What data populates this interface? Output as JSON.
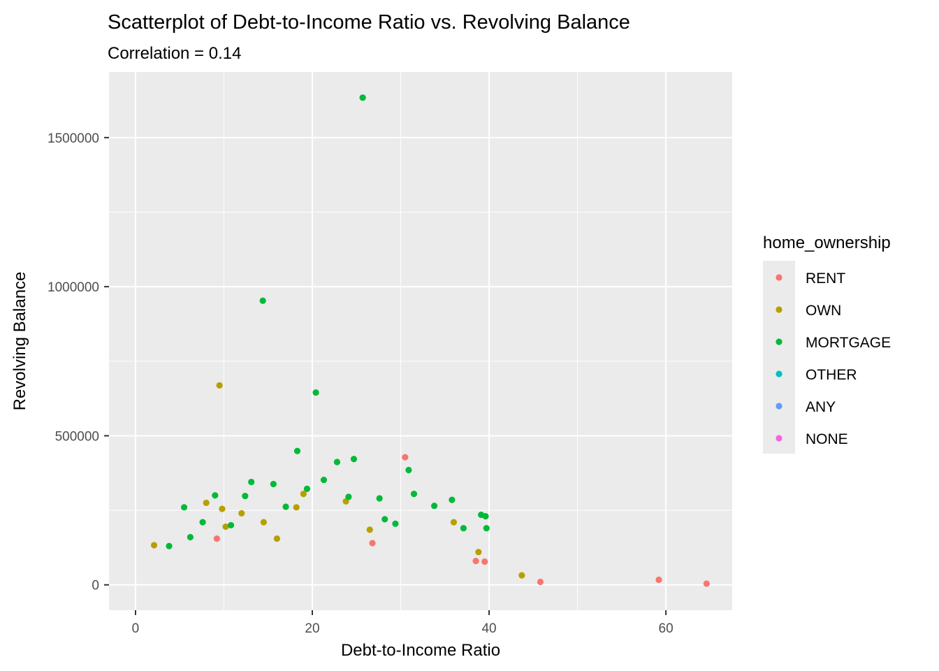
{
  "chart_data": {
    "type": "scatter",
    "title": "Scatterplot of Debt-to-Income Ratio vs. Revolving Balance",
    "subtitle": "Correlation = 0.14",
    "xlabel": "Debt-to-Income Ratio",
    "ylabel": "Revolving Balance",
    "xlim": [
      -3,
      67.5
    ],
    "ylim": [
      -85000,
      1720000
    ],
    "x_ticks": [
      0,
      20,
      40,
      60
    ],
    "x_tick_labels": [
      "0",
      "20",
      "40",
      "60"
    ],
    "x_minor_ticks": [
      10,
      30,
      50
    ],
    "y_ticks": [
      0,
      500000,
      1000000,
      1500000
    ],
    "y_tick_labels": [
      "0",
      "500000",
      "1000000",
      "1500000"
    ],
    "y_minor_ticks": [
      250000,
      750000,
      1250000
    ],
    "grid": true,
    "panel_background": "#ebebeb",
    "legend": {
      "title": "home_ownership",
      "position": "right"
    },
    "series": [
      {
        "name": "RENT",
        "color": "#F8766D",
        "points": [
          [
            30.5,
            428000
          ],
          [
            45.8,
            10000
          ],
          [
            59.2,
            17000
          ],
          [
            64.6,
            4000
          ],
          [
            9.2,
            155000
          ],
          [
            26.8,
            140000
          ],
          [
            38.5,
            80000
          ],
          [
            39.5,
            78000
          ]
        ]
      },
      {
        "name": "OWN",
        "color": "#B79F00",
        "points": [
          [
            9.5,
            669000
          ],
          [
            43.7,
            32000
          ],
          [
            2.1,
            133000
          ],
          [
            8.0,
            275000
          ],
          [
            10.2,
            195000
          ],
          [
            12.0,
            240000
          ],
          [
            14.5,
            210000
          ],
          [
            19.0,
            305000
          ],
          [
            23.8,
            280000
          ],
          [
            36.0,
            210000
          ],
          [
            38.8,
            110000
          ],
          [
            18.2,
            260000
          ],
          [
            26.5,
            185000
          ],
          [
            9.8,
            255000
          ],
          [
            16.0,
            155000
          ]
        ]
      },
      {
        "name": "MORTGAGE",
        "color": "#00BA38",
        "points": [
          [
            25.7,
            1634000
          ],
          [
            14.4,
            953000
          ],
          [
            20.4,
            645000
          ],
          [
            18.3,
            449000
          ],
          [
            24.7,
            422000
          ],
          [
            22.8,
            412000
          ],
          [
            30.9,
            385000
          ],
          [
            13.1,
            345000
          ],
          [
            21.3,
            352000
          ],
          [
            15.6,
            338000
          ],
          [
            19.4,
            322000
          ],
          [
            9.0,
            300000
          ],
          [
            12.4,
            298000
          ],
          [
            31.5,
            305000
          ],
          [
            35.8,
            285000
          ],
          [
            27.6,
            290000
          ],
          [
            24.1,
            295000
          ],
          [
            39.1,
            235000
          ],
          [
            39.6,
            230000
          ],
          [
            5.5,
            260000
          ],
          [
            17.0,
            262000
          ],
          [
            33.8,
            265000
          ],
          [
            28.2,
            220000
          ],
          [
            29.4,
            205000
          ],
          [
            37.1,
            190000
          ],
          [
            39.7,
            190000
          ],
          [
            3.8,
            130000
          ],
          [
            6.2,
            160000
          ],
          [
            7.6,
            210000
          ],
          [
            10.8,
            200000
          ]
        ]
      },
      {
        "name": "OTHER",
        "color": "#00BFC4",
        "points": []
      },
      {
        "name": "ANY",
        "color": "#619CFF",
        "points": []
      },
      {
        "name": "NONE",
        "color": "#F564E3",
        "points": []
      }
    ]
  }
}
